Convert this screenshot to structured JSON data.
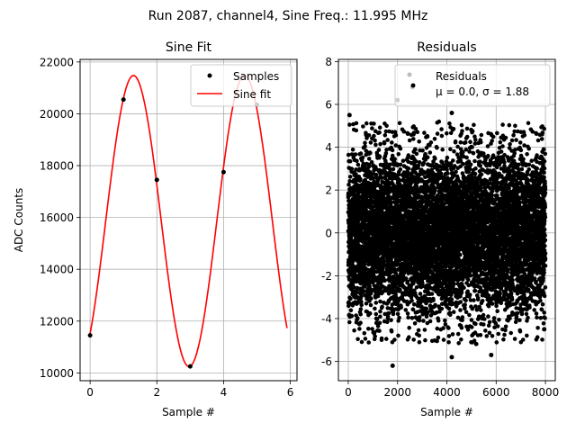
{
  "suptitle": "Run 2087, channel4, Sine Freq.: 11.995 MHz",
  "colors": {
    "samples": "#000000",
    "fit": "#ff0000",
    "residuals": "#000000",
    "grid": "#b0b0b0"
  },
  "chart_data": [
    {
      "type": "line",
      "title": "Sine Fit",
      "xlabel": "Sample #",
      "ylabel": "ADC Counts",
      "xlim": [
        -0.3,
        6.2
      ],
      "ylim": [
        9700,
        22100
      ],
      "xticks": [
        0,
        2,
        4,
        6
      ],
      "yticks": [
        10000,
        12000,
        14000,
        16000,
        18000,
        20000,
        22000
      ],
      "grid": true,
      "legend_position": "upper-right",
      "legend": [
        "Samples",
        "Sine fit"
      ],
      "series": [
        {
          "name": "Samples",
          "style": "markers",
          "x": [
            0,
            1,
            2,
            3,
            4,
            5
          ],
          "y": [
            11450,
            20550,
            17450,
            10250,
            17750,
            20350
          ]
        },
        {
          "name": "Sine fit",
          "style": "line",
          "model": {
            "offset": 15860,
            "amplitude": 5620,
            "period": 3.33,
            "peak_at": 1.3
          },
          "x_range": [
            0,
            5.9
          ]
        }
      ]
    },
    {
      "type": "scatter",
      "title": "Residuals",
      "xlabel": "Sample #",
      "ylabel": "",
      "xlim": [
        -400,
        8400
      ],
      "ylim": [
        -6.9,
        8.1
      ],
      "xticks": [
        0,
        2000,
        4000,
        6000,
        8000
      ],
      "yticks": [
        -6,
        -4,
        -2,
        0,
        2,
        4,
        6,
        8
      ],
      "grid": true,
      "legend_position": "upper-right",
      "legend": [
        "Residuals",
        "$\\mu$ = 0.0, $\\sigma$ = 1.88"
      ],
      "legend_lines": [
        "Residuals",
        "μ = 0.0, σ = 1.88"
      ],
      "series": [
        {
          "name": "Residuals",
          "style": "markers",
          "n_points": 8000,
          "x_range": [
            0,
            7999
          ],
          "mean": 0.0,
          "std": 1.88,
          "highlighted": [
            {
              "x": 50,
              "y": 5.5
            },
            {
              "x": 2000,
              "y": 6.2
            },
            {
              "x": 2600,
              "y": 6.8
            },
            {
              "x": 1800,
              "y": -6.2
            },
            {
              "x": 4200,
              "y": 5.6
            },
            {
              "x": 4200,
              "y": -5.8
            },
            {
              "x": 5800,
              "y": -5.7
            },
            {
              "x": 7950,
              "y": -4.5
            }
          ]
        }
      ]
    }
  ]
}
